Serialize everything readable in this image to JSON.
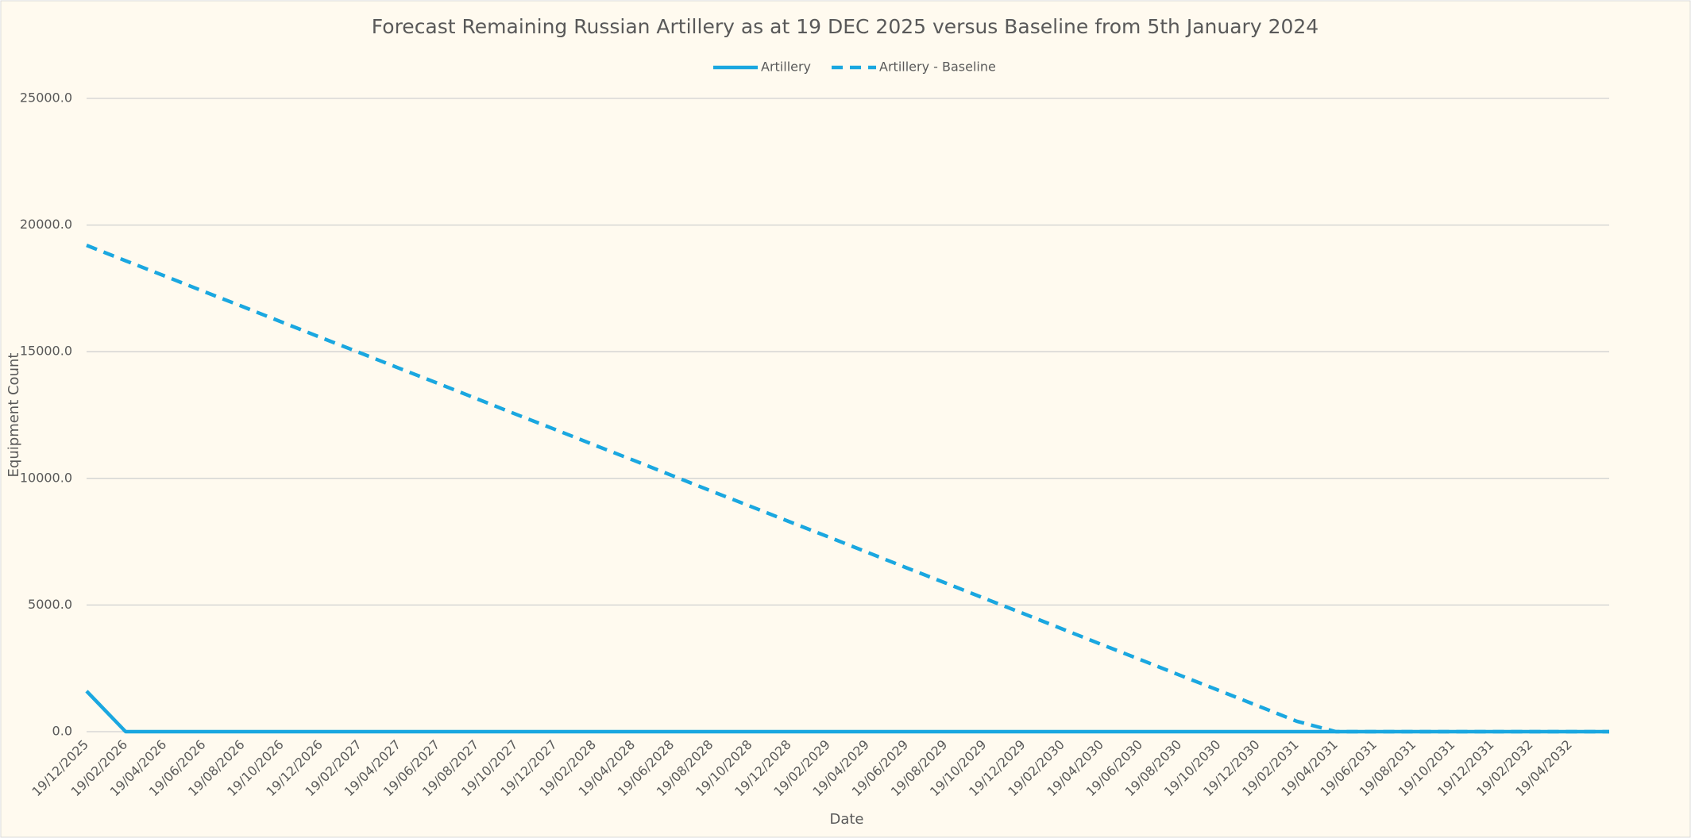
{
  "chart_data": {
    "type": "line",
    "title": "Forecast Remaining Russian Artillery as at 19 DEC 2025 versus Baseline from 5th January 2024",
    "x_label": "Date",
    "y_label": "Equipment Count",
    "categories": [
      "19/12/2025",
      "19/02/2026",
      "19/04/2026",
      "19/06/2026",
      "19/08/2026",
      "19/10/2026",
      "19/12/2026",
      "19/02/2027",
      "19/04/2027",
      "19/06/2027",
      "19/08/2027",
      "19/10/2027",
      "19/12/2027",
      "19/02/2028",
      "19/04/2028",
      "19/06/2028",
      "19/08/2028",
      "19/10/2028",
      "19/12/2028",
      "19/02/2029",
      "19/04/2029",
      "19/06/2029",
      "19/08/2029",
      "19/10/2029",
      "19/12/2029",
      "19/02/2030",
      "19/04/2030",
      "19/06/2030",
      "19/08/2030",
      "19/10/2030",
      "19/12/2030",
      "19/02/2031",
      "19/04/2031",
      "19/06/2031",
      "19/08/2031",
      "19/10/2031",
      "19/12/2031",
      "19/02/2032",
      "19/04/2032",
      null
    ],
    "series": [
      {
        "name": "Artillery",
        "color": "#1aa7e0",
        "dash": false,
        "values": [
          1600,
          0,
          0,
          0,
          0,
          0,
          0,
          0,
          0,
          0,
          0,
          0,
          0,
          0,
          0,
          0,
          0,
          0,
          0,
          0,
          0,
          0,
          0,
          0,
          0,
          0,
          0,
          0,
          0,
          0,
          0,
          0,
          0,
          0,
          0,
          0,
          0,
          0,
          0,
          0
        ]
      },
      {
        "name": "Artillery - Baseline",
        "color": "#1aa7e0",
        "dash": true,
        "values": [
          19200,
          18590,
          17990,
          17380,
          16780,
          16170,
          15560,
          14960,
          14350,
          13750,
          13140,
          12530,
          11930,
          11320,
          10720,
          10110,
          9500,
          8900,
          8290,
          7690,
          7080,
          6470,
          5870,
          5260,
          4660,
          4050,
          3440,
          2840,
          2230,
          1630,
          1020,
          410,
          0,
          0,
          0,
          0,
          0,
          0,
          0,
          0
        ]
      }
    ],
    "ylim": [
      0,
      25000
    ],
    "yticks": [
      {
        "value": 0,
        "label": "0.0"
      },
      {
        "value": 5000,
        "label": "5000.0"
      },
      {
        "value": 10000,
        "label": "10000.0"
      },
      {
        "value": 15000,
        "label": "15000.0"
      },
      {
        "value": 20000,
        "label": "20000.0"
      },
      {
        "value": 25000,
        "label": "25000.0"
      }
    ],
    "grid": true,
    "legend": "top"
  }
}
